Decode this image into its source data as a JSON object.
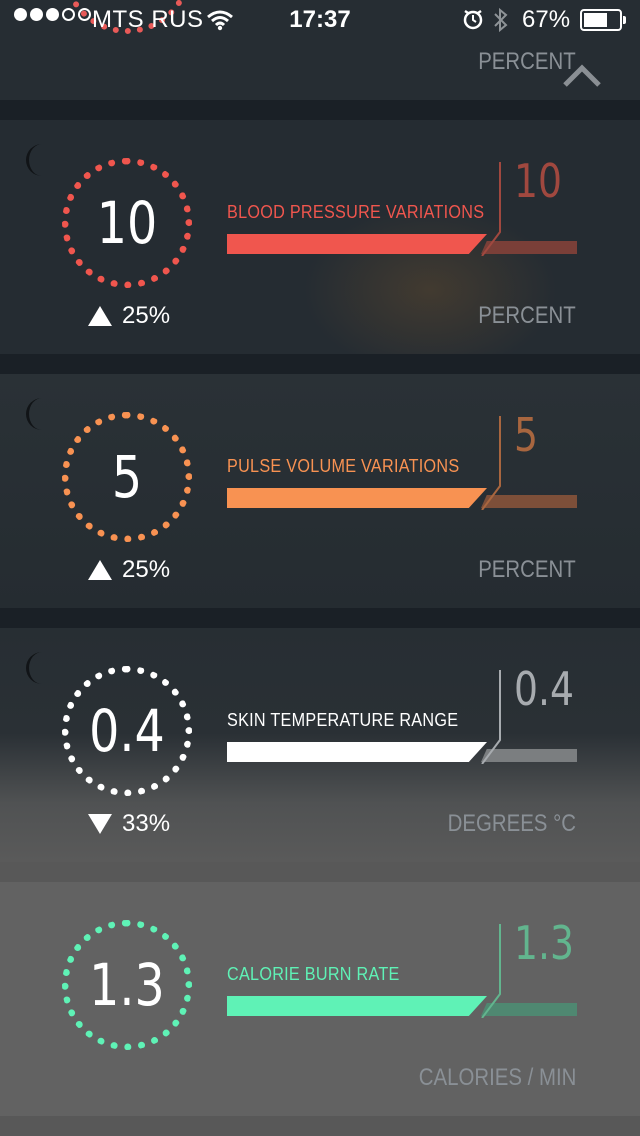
{
  "status_bar": {
    "carrier": "MTS RUS",
    "time": "17:37",
    "battery_percent": "67%",
    "battery_level": 0.67,
    "signal_bars_filled": 3,
    "signal_bars_total": 5
  },
  "top_card": {
    "unit": "PERCENT",
    "ring_color": "#e85a58"
  },
  "metrics": [
    {
      "label": "BLOOD PRESSURE VARIATIONS",
      "value": "10",
      "change": "25%",
      "direction": "up",
      "peak": "10",
      "unit": "PERCENT",
      "color": "#f0564e",
      "peak_color": "#a0483f",
      "rest_color": "#7a3f38"
    },
    {
      "label": "PULSE VOLUME VARIATIONS",
      "value": "5",
      "change": "25%",
      "direction": "up",
      "peak": "5",
      "unit": "PERCENT",
      "color": "#f89252",
      "peak_color": "#a8663f",
      "rest_color": "#7d4f39"
    },
    {
      "label": "SKIN TEMPERATURE RANGE",
      "value": "0.4",
      "change": "33%",
      "direction": "down",
      "peak": "0.4",
      "unit": "DEGREES °C",
      "color": "#ffffff",
      "peak_color": "#a7abaf",
      "rest_color": "#7b7e80"
    },
    {
      "label": "CALORIE BURN RATE",
      "value": "1.3",
      "change": "",
      "direction": "",
      "peak": "1.3",
      "unit": "CALORIES / MIN",
      "color": "#5ff2b6",
      "peak_color": "#62b58e",
      "rest_color": "#4f8871"
    }
  ]
}
